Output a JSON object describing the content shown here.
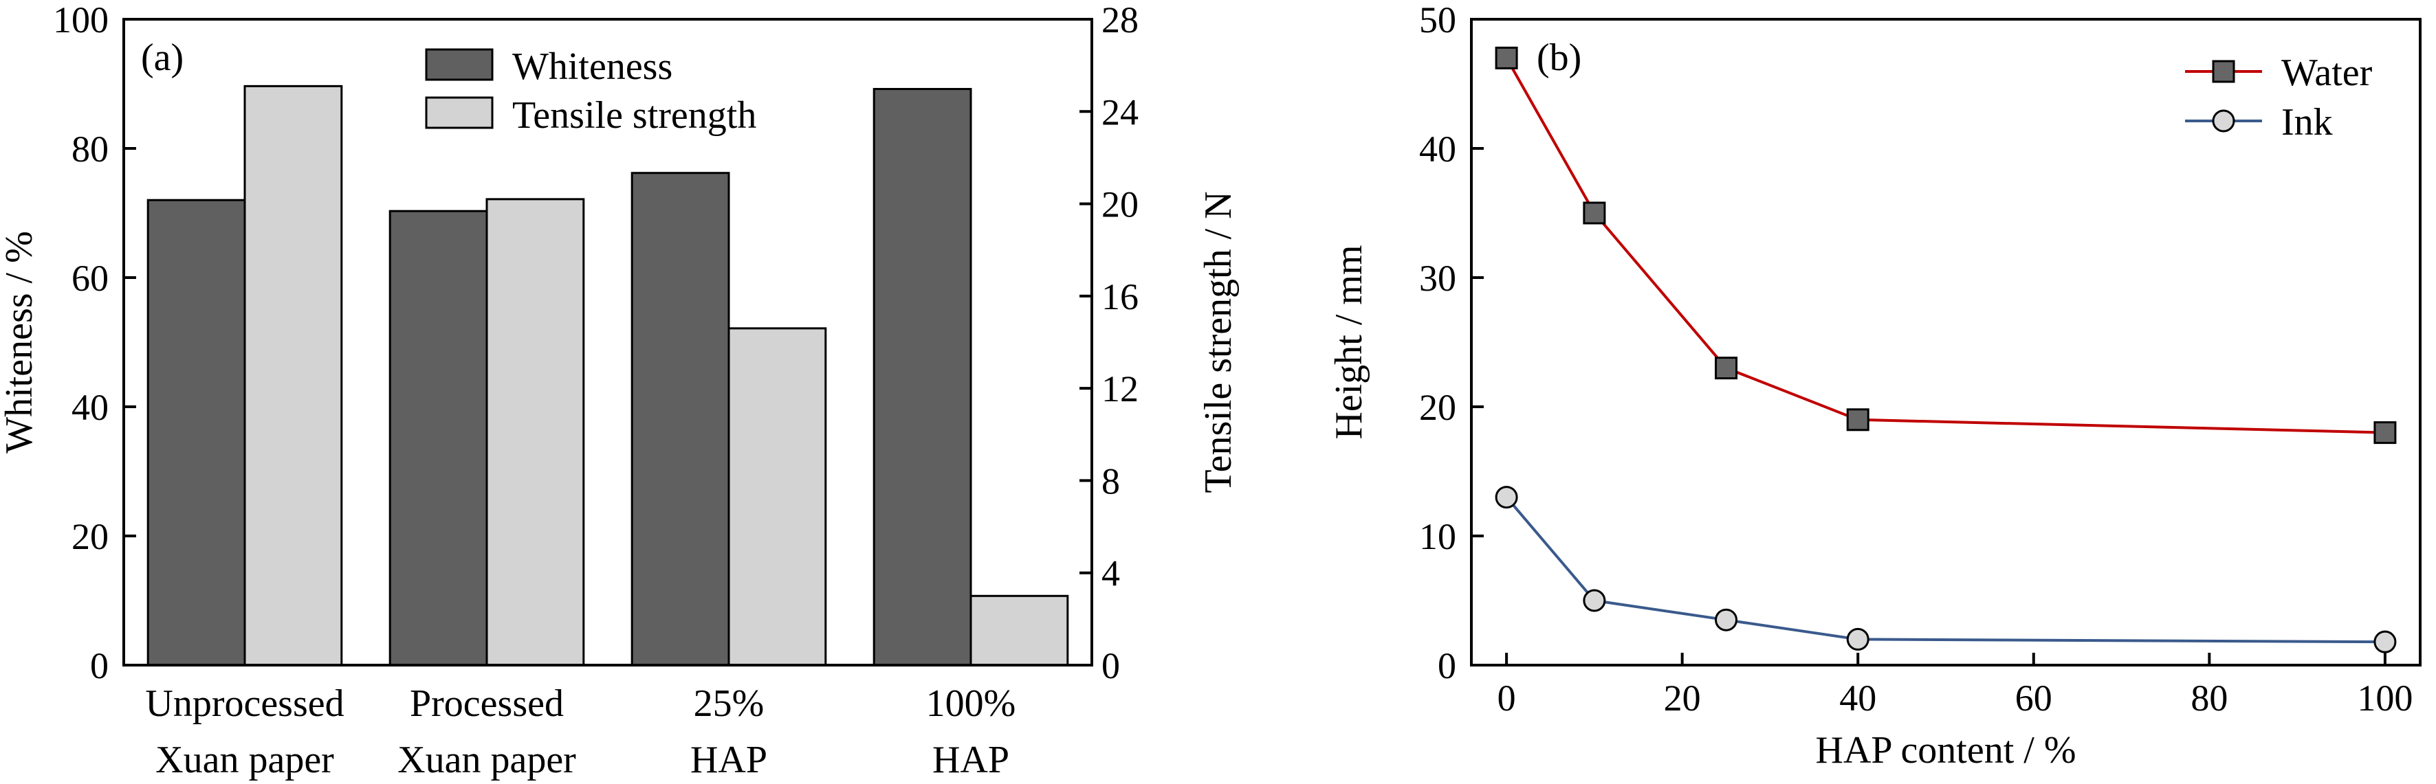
{
  "chart_data": [
    {
      "type": "bar",
      "panel_label": "(a)",
      "categories": [
        [
          "Unprocessed",
          "Xuan paper"
        ],
        [
          "Processed",
          "Xuan paper"
        ],
        [
          "25%",
          "HAP"
        ],
        [
          "100%",
          "HAP"
        ]
      ],
      "series": [
        {
          "name": "Whiteness",
          "axis": "left",
          "values": [
            72,
            70.3,
            76.2,
            89.2
          ],
          "color": "#606060"
        },
        {
          "name": "Tensile strength",
          "axis": "right",
          "values": [
            25.1,
            20.2,
            14.6,
            3.0
          ],
          "color": "#d3d3d3"
        }
      ],
      "ylabel": "Whiteness / %",
      "ylim": [
        0,
        100
      ],
      "yticks": [
        0,
        20,
        40,
        60,
        80,
        100
      ],
      "y2label": "Tensile strength / N",
      "y2lim": [
        0,
        28
      ],
      "y2ticks": [
        0,
        4,
        8,
        12,
        16,
        20,
        24,
        28
      ],
      "legend": "top-center",
      "grid": false
    },
    {
      "type": "line",
      "panel_label": "(b)",
      "series": [
        {
          "name": "Water",
          "marker": "square",
          "color": "#c00000",
          "marker_fill": "#666666",
          "x": [
            0,
            10,
            25,
            40,
            100
          ],
          "y": [
            47,
            35,
            23,
            19,
            18
          ]
        },
        {
          "name": "Ink",
          "marker": "circle",
          "color": "#3a5a8c",
          "marker_fill": "#d9d9d9",
          "x": [
            0,
            10,
            25,
            40,
            100
          ],
          "y": [
            13,
            5,
            3.5,
            2,
            1.8
          ]
        }
      ],
      "xlabel": "HAP content / %",
      "ylabel": "Height / mm",
      "xlim": [
        -4,
        104
      ],
      "xticks": [
        0,
        20,
        40,
        60,
        80,
        100
      ],
      "ylim": [
        0,
        50
      ],
      "yticks": [
        0,
        10,
        20,
        30,
        40,
        50
      ],
      "legend": "top-right",
      "grid": false
    }
  ]
}
